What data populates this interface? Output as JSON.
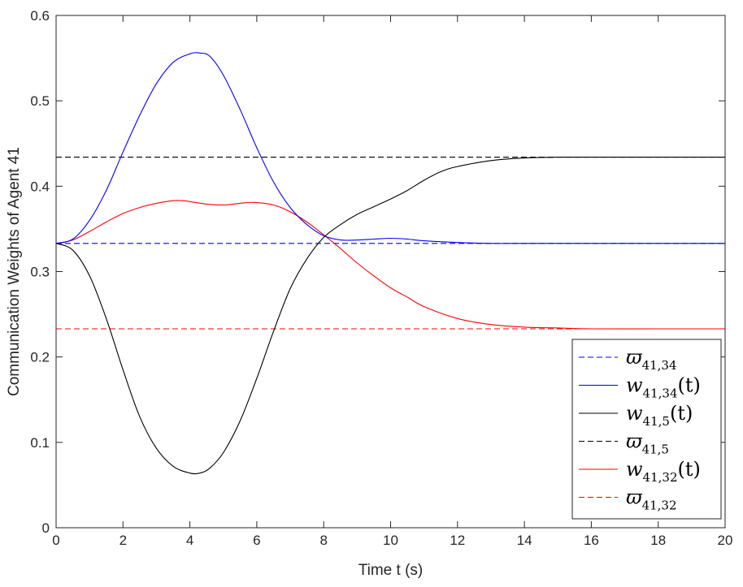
{
  "chart_data": {
    "type": "line",
    "title": "",
    "xlabel": "Time t (s)",
    "ylabel": "Communication Weights of Agent 41",
    "xlim": [
      0,
      20
    ],
    "ylim": [
      0,
      0.6
    ],
    "xticks": [
      0,
      2,
      4,
      6,
      8,
      10,
      12,
      14,
      16,
      18,
      20
    ],
    "xtick_labels": [
      "0",
      "2",
      "4",
      "6",
      "8",
      "10",
      "12",
      "14",
      "16",
      "18",
      "20"
    ],
    "yticks": [
      0,
      0.1,
      0.2,
      0.3,
      0.4,
      0.5,
      0.6
    ],
    "ytick_labels": [
      "0",
      "0.1",
      "0.2",
      "0.3",
      "0.4",
      "0.5",
      "0.6"
    ],
    "grid": false,
    "legend_position": "bottom-right",
    "series": [
      {
        "id": "ref_34",
        "legend": {
          "base": "ϖ",
          "sub": "41,34",
          "suffix": ""
        },
        "color": "#0000ff",
        "style": "dashed",
        "x": [
          0,
          20
        ],
        "y": [
          0.333,
          0.333
        ]
      },
      {
        "id": "w_34",
        "legend": {
          "base": "w",
          "sub": "41,34",
          "suffix": "(t)"
        },
        "color": "#0000ff",
        "style": "solid",
        "x": [
          0,
          0.5,
          1,
          1.5,
          2,
          2.5,
          3,
          3.5,
          4,
          4.3,
          4.6,
          5,
          5.5,
          6,
          6.5,
          7,
          7.5,
          8,
          8.5,
          9,
          9.5,
          10,
          10.5,
          11,
          12,
          13,
          14,
          16,
          18,
          20
        ],
        "y": [
          0.333,
          0.338,
          0.36,
          0.395,
          0.44,
          0.483,
          0.52,
          0.545,
          0.555,
          0.556,
          0.552,
          0.53,
          0.49,
          0.445,
          0.405,
          0.375,
          0.355,
          0.342,
          0.337,
          0.337,
          0.338,
          0.339,
          0.338,
          0.336,
          0.334,
          0.333,
          0.333,
          0.333,
          0.333,
          0.333
        ]
      },
      {
        "id": "w_5",
        "legend": {
          "base": "w",
          "sub": "41,5",
          "suffix": "(t)"
        },
        "color": "#000000",
        "style": "solid",
        "x": [
          0,
          0.5,
          1,
          1.5,
          2,
          2.5,
          3,
          3.5,
          4,
          4.3,
          4.6,
          5,
          5.5,
          6,
          6.5,
          7,
          7.5,
          8,
          8.5,
          9,
          9.5,
          10,
          10.5,
          11,
          11.5,
          12,
          13,
          14,
          15,
          16,
          18,
          20
        ],
        "y": [
          0.333,
          0.325,
          0.295,
          0.245,
          0.185,
          0.13,
          0.093,
          0.072,
          0.064,
          0.064,
          0.07,
          0.088,
          0.125,
          0.175,
          0.23,
          0.28,
          0.315,
          0.34,
          0.355,
          0.367,
          0.376,
          0.385,
          0.395,
          0.407,
          0.417,
          0.423,
          0.43,
          0.433,
          0.434,
          0.434,
          0.434,
          0.434
        ]
      },
      {
        "id": "ref_5",
        "legend": {
          "base": "ϖ",
          "sub": "41,5",
          "suffix": ""
        },
        "color": "#000000",
        "style": "dashed",
        "x": [
          0,
          20
        ],
        "y": [
          0.434,
          0.434
        ]
      },
      {
        "id": "w_32",
        "legend": {
          "base": "w",
          "sub": "41,32",
          "suffix": "(t)"
        },
        "color": "#ff0000",
        "style": "solid",
        "x": [
          0,
          0.5,
          1,
          1.5,
          2,
          2.5,
          3,
          3.5,
          3.8,
          4,
          4.5,
          5,
          5.5,
          5.9,
          6.5,
          7,
          7.5,
          8,
          8.5,
          9,
          9.5,
          10,
          10.5,
          11,
          12,
          13,
          14,
          15,
          16,
          18,
          20
        ],
        "y": [
          0.333,
          0.337,
          0.347,
          0.358,
          0.368,
          0.375,
          0.38,
          0.383,
          0.383,
          0.382,
          0.379,
          0.378,
          0.38,
          0.381,
          0.378,
          0.37,
          0.358,
          0.343,
          0.327,
          0.31,
          0.295,
          0.281,
          0.27,
          0.259,
          0.245,
          0.238,
          0.235,
          0.234,
          0.233,
          0.233,
          0.233
        ]
      },
      {
        "id": "ref_32",
        "legend": {
          "base": "ϖ",
          "sub": "41,32",
          "suffix": ""
        },
        "color": "#ff0000",
        "style": "dashed",
        "x": [
          0,
          20
        ],
        "y": [
          0.233,
          0.233
        ]
      }
    ]
  }
}
